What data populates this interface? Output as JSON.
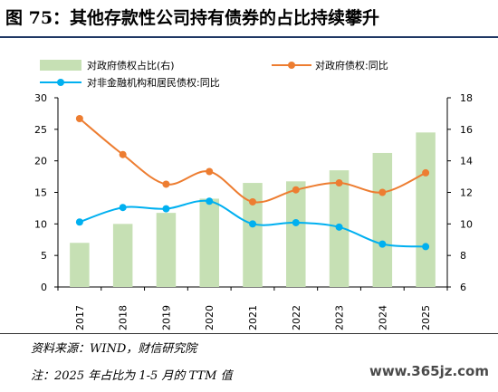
{
  "figure": {
    "title": "图 75：其他存款性公司持有债券的占比持续攀升",
    "source": "资料来源：WIND，财信研究院",
    "note": "注：2025 年占比为 1-5 月的 TTM 值",
    "watermark": "www.365jz.com"
  },
  "chart_data": {
    "type": "bar",
    "categories": [
      "2017",
      "2018",
      "2019",
      "2020",
      "2021",
      "2022",
      "2023",
      "2024",
      "2025"
    ],
    "y_left": {
      "ylim": [
        0,
        30
      ],
      "ticks": [
        0,
        5,
        10,
        15,
        20,
        25,
        30
      ]
    },
    "y_right": {
      "ylim": [
        6,
        18
      ],
      "ticks": [
        6,
        8,
        10,
        12,
        14,
        16,
        18
      ]
    },
    "series": [
      {
        "name": "对政府债权占比(右)",
        "type": "bar",
        "axis": "right",
        "color": "#c6e0b4",
        "values": [
          8.8,
          10.0,
          10.7,
          11.6,
          12.6,
          12.7,
          13.4,
          14.5,
          15.8
        ]
      },
      {
        "name": "对政府债权:同比",
        "type": "line",
        "axis": "left",
        "color": "#ed7d31",
        "values": [
          26.7,
          21.0,
          16.3,
          18.3,
          13.5,
          15.4,
          16.5,
          15.0,
          18.1
        ]
      },
      {
        "name": "对非金融机构和居民债权:同比",
        "type": "line",
        "axis": "left",
        "color": "#00b0f0",
        "values": [
          10.3,
          12.6,
          12.4,
          13.6,
          10.0,
          10.2,
          9.5,
          6.8,
          6.4
        ]
      }
    ],
    "grid": false,
    "legend": "top"
  }
}
